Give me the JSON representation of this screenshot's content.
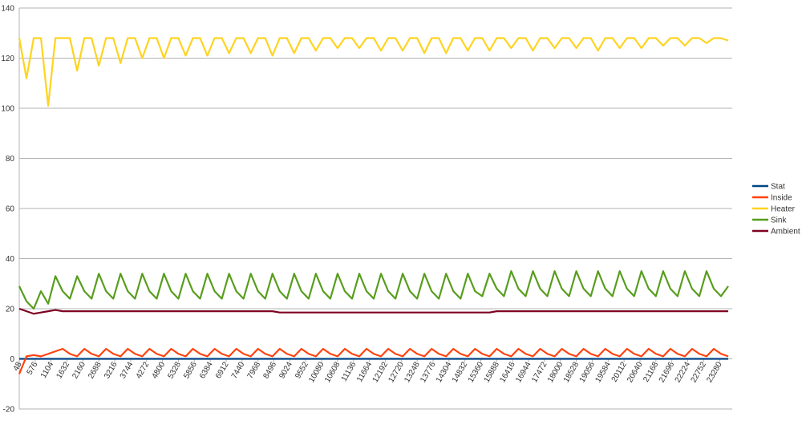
{
  "chart_data": {
    "type": "line",
    "x": [
      48,
      288,
      528,
      768,
      1008,
      1248,
      1488,
      1728,
      1968,
      2208,
      2448,
      2688,
      2928,
      3168,
      3408,
      3648,
      3888,
      4128,
      4368,
      4608,
      4848,
      5088,
      5328,
      5568,
      5808,
      6048,
      6288,
      6528,
      6768,
      7008,
      7248,
      7488,
      7728,
      7968,
      8208,
      8448,
      8688,
      8928,
      9168,
      9408,
      9648,
      9888,
      10128,
      10368,
      10608,
      10848,
      11088,
      11328,
      11568,
      11808,
      12048,
      12288,
      12528,
      12768,
      13008,
      13248,
      13488,
      13728,
      13968,
      14208,
      14448,
      14688,
      14928,
      15168,
      15408,
      15648,
      15888,
      16128,
      16368,
      16608,
      16848,
      17088,
      17328,
      17568,
      17808,
      18048,
      18288,
      18528,
      18768,
      19008,
      19248,
      19488,
      19728,
      19968,
      20208,
      20448,
      20688,
      20928,
      21168,
      21408,
      21648,
      21888,
      22128,
      22368,
      22608,
      22848,
      23088,
      23328,
      23568
    ],
    "xlim": [
      48,
      23700
    ],
    "xticks": [
      48,
      576,
      1104,
      1632,
      2160,
      2688,
      3216,
      3744,
      4272,
      4800,
      5328,
      5856,
      6384,
      6912,
      7440,
      7968,
      8496,
      9024,
      9552,
      10080,
      10608,
      11136,
      11664,
      12192,
      12720,
      13248,
      13776,
      14304,
      14832,
      15360,
      15888,
      16416,
      16944,
      17472,
      18000,
      18528,
      19056,
      19584,
      20112,
      20640,
      21168,
      21696,
      22224,
      22752,
      23280
    ],
    "ylim": [
      -20,
      140
    ],
    "yticks": [
      -20,
      0,
      20,
      40,
      60,
      80,
      100,
      120,
      140
    ],
    "grid": true,
    "legend": "right",
    "series": [
      {
        "name": "Stat",
        "color": "#004586",
        "values": [
          0,
          0,
          0,
          0,
          0,
          0,
          0,
          0,
          0,
          0,
          0,
          0,
          0,
          0,
          0,
          0,
          0,
          0,
          0,
          0,
          0,
          0,
          0,
          0,
          0,
          0,
          0,
          0,
          0,
          0,
          0,
          0,
          0,
          0,
          0,
          0,
          0,
          0,
          0,
          0,
          0,
          0,
          0,
          0,
          0,
          0,
          0,
          0,
          0,
          0,
          0,
          0,
          0,
          0,
          0,
          0,
          0,
          0,
          0,
          0,
          0,
          0,
          0,
          0,
          0,
          0,
          0,
          0,
          0,
          0,
          0,
          0,
          0,
          0,
          0,
          0,
          0,
          0,
          0,
          0,
          0,
          0,
          0,
          0,
          0,
          0,
          0,
          0,
          0,
          0,
          0,
          0,
          0,
          0,
          0,
          0,
          0,
          0,
          0
        ]
      },
      {
        "name": "Inside",
        "color": "#ff420e",
        "values": [
          -6,
          1,
          1.5,
          1,
          2,
          3,
          4,
          2,
          1,
          4,
          2,
          1,
          4,
          2,
          1,
          4,
          2,
          1,
          4,
          2,
          1,
          4,
          2,
          1,
          4,
          2,
          1,
          4,
          2,
          1,
          4,
          2,
          1,
          4,
          2,
          1,
          4,
          2,
          1,
          4,
          2,
          1,
          4,
          2,
          1,
          4,
          2,
          1,
          4,
          2,
          1,
          4,
          2,
          1,
          4,
          2,
          1,
          4,
          2,
          1,
          4,
          2,
          1,
          4,
          2,
          1,
          4,
          2,
          1,
          4,
          2,
          1,
          4,
          2,
          1,
          4,
          2,
          1,
          4,
          2,
          1,
          4,
          2,
          1,
          4,
          2,
          1,
          4,
          2,
          1,
          4,
          2,
          1,
          4,
          2,
          1,
          4,
          2,
          1
        ]
      },
      {
        "name": "Heater",
        "color": "#ffd320",
        "values": [
          128,
          112,
          128,
          128,
          101,
          128,
          128,
          128,
          115,
          128,
          128,
          117,
          128,
          128,
          118,
          128,
          128,
          120,
          128,
          128,
          120,
          128,
          128,
          121,
          128,
          128,
          121,
          128,
          128,
          122,
          128,
          128,
          122,
          128,
          128,
          121,
          128,
          128,
          122,
          128,
          128,
          123,
          128,
          128,
          124,
          128,
          128,
          124,
          128,
          128,
          123,
          128,
          128,
          123,
          128,
          128,
          122,
          128,
          128,
          122,
          128,
          128,
          123,
          128,
          128,
          123,
          128,
          128,
          124,
          128,
          128,
          123,
          128,
          128,
          124,
          128,
          128,
          124,
          128,
          128,
          123,
          128,
          128,
          124,
          128,
          128,
          124,
          128,
          128,
          125,
          128,
          128,
          125,
          128,
          128,
          126,
          128,
          128,
          127
        ]
      },
      {
        "name": "Sink",
        "color": "#579d1c",
        "values": [
          29,
          23,
          20,
          27,
          22,
          33,
          27,
          24,
          33,
          27,
          24,
          34,
          27,
          24,
          34,
          27,
          24,
          34,
          27,
          24,
          34,
          27,
          24,
          34,
          27,
          24,
          34,
          27,
          24,
          34,
          27,
          24,
          34,
          27,
          24,
          34,
          27,
          24,
          34,
          27,
          24,
          34,
          27,
          24,
          34,
          27,
          24,
          34,
          27,
          24,
          34,
          27,
          24,
          34,
          27,
          24,
          34,
          27,
          24,
          34,
          27,
          24,
          34,
          27,
          25,
          34,
          28,
          25,
          35,
          28,
          25,
          35,
          28,
          25,
          35,
          28,
          25,
          35,
          28,
          25,
          35,
          28,
          25,
          35,
          28,
          25,
          35,
          28,
          25,
          35,
          28,
          25,
          35,
          28,
          25,
          35,
          28,
          25,
          29
        ]
      },
      {
        "name": "Ambient",
        "color": "#7e0021",
        "values": [
          20,
          19,
          18,
          18.5,
          19,
          19.5,
          19,
          19,
          19,
          19,
          19,
          19,
          19,
          19,
          19,
          19,
          19,
          19,
          19,
          19,
          19,
          19,
          19,
          19,
          19,
          19,
          19,
          19,
          19,
          19,
          19,
          19,
          19,
          19,
          19,
          19,
          18.5,
          18.5,
          18.5,
          18.5,
          18.5,
          18.5,
          18.5,
          18.5,
          18.5,
          18.5,
          18.5,
          18.5,
          18.5,
          18.5,
          18.5,
          18.5,
          18.5,
          18.5,
          18.5,
          18.5,
          18.5,
          18.5,
          18.5,
          18.5,
          18.5,
          18.5,
          18.5,
          18.5,
          18.5,
          18.5,
          19,
          19,
          19,
          19,
          19,
          19,
          19,
          19,
          19,
          19,
          19,
          19,
          19,
          19,
          19,
          19,
          19,
          19,
          19,
          19,
          19,
          19,
          19,
          19,
          19,
          19,
          19,
          19,
          19,
          19,
          19,
          19,
          19
        ]
      }
    ]
  }
}
